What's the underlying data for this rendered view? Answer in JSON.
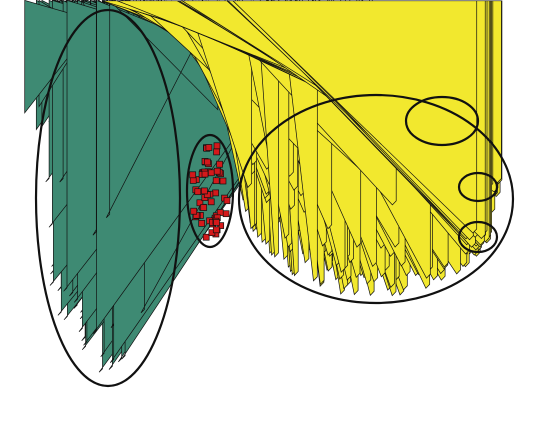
{
  "chart_data": {
    "type": "scatter",
    "title": "",
    "xlabel": "",
    "ylabel": "",
    "axes_visible": false,
    "grid": false,
    "legend": "none",
    "colors": {
      "teal": "#3e8a73",
      "red": "#d4191b",
      "yellow": "#f2e82e",
      "outline": "#111111"
    },
    "clusters": [
      {
        "marker": "diamond",
        "color": "#3e8a73",
        "count": 110,
        "center": [
          108,
          198
        ],
        "radii": [
          72,
          188
        ],
        "spread": [
          0.88,
          0.94
        ]
      },
      {
        "marker": "square",
        "color": "#d4191b",
        "count": 60,
        "center": [
          210,
          191
        ],
        "radii": [
          23,
          56
        ],
        "spread": [
          0.8,
          0.88
        ]
      },
      {
        "marker": "triangle",
        "color": "#f2e82e",
        "count": 520,
        "center": [
          376,
          199
        ],
        "radii": [
          137,
          104
        ],
        "spread": [
          0.95,
          0.95
        ]
      },
      {
        "marker": "triangle",
        "color": "#f2e82e",
        "count": 140,
        "center": [
          442,
          121
        ],
        "radii": [
          36,
          24
        ],
        "spread": [
          0.85,
          0.8
        ]
      },
      {
        "marker": "triangle",
        "color": "#f2e82e",
        "count": 40,
        "center": [
          478,
          187
        ],
        "radii": [
          19,
          14
        ],
        "spread": [
          0.8,
          0.75
        ]
      },
      {
        "marker": "triangle",
        "color": "#f2e82e",
        "count": 45,
        "center": [
          478,
          237
        ],
        "radii": [
          19,
          15
        ],
        "spread": [
          0.8,
          0.75
        ]
      }
    ]
  }
}
